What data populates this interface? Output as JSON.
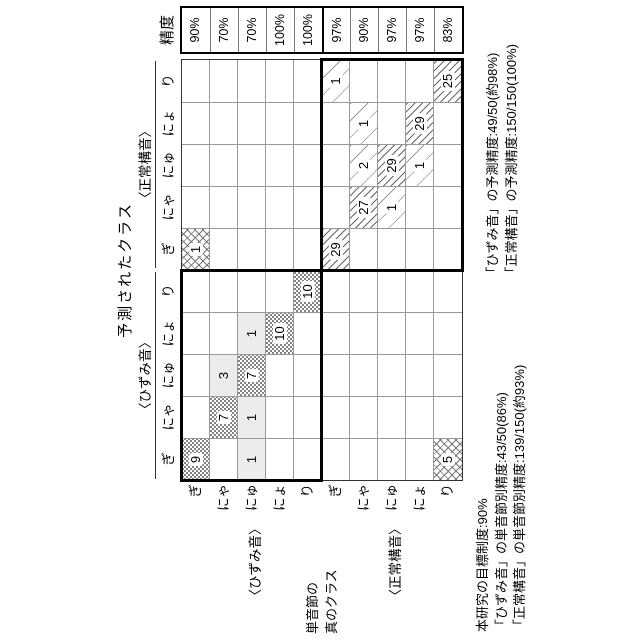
{
  "chart_data": {
    "type": "heatmap",
    "subtype": "confusion-matrix",
    "title": "予測されたクラス",
    "true_axis_label_lines": [
      "単音節の",
      "真のクラス"
    ],
    "accuracy_column_header": "精度",
    "predicted_groups": [
      "〈ひずみ音〉",
      "〈正常構音〉"
    ],
    "true_groups": [
      "〈ひずみ音〉",
      "〈正常構音〉"
    ],
    "classes": [
      "ぎ",
      "にゃ",
      "にゅ",
      "にょ",
      "り"
    ],
    "rows": [
      {
        "group": "ひずみ音",
        "class": "ぎ",
        "values": [
          9,
          0,
          0,
          0,
          0,
          1,
          0,
          0,
          0,
          0
        ],
        "accuracy": "90%"
      },
      {
        "group": "ひずみ音",
        "class": "にゃ",
        "values": [
          0,
          7,
          3,
          0,
          0,
          0,
          0,
          0,
          0,
          0
        ],
        "accuracy": "70%"
      },
      {
        "group": "ひずみ音",
        "class": "にゅ",
        "values": [
          1,
          1,
          7,
          1,
          0,
          0,
          0,
          0,
          0,
          0
        ],
        "accuracy": "70%"
      },
      {
        "group": "ひずみ音",
        "class": "にょ",
        "values": [
          0,
          0,
          0,
          10,
          0,
          0,
          0,
          0,
          0,
          0
        ],
        "accuracy": "100%"
      },
      {
        "group": "ひずみ音",
        "class": "り",
        "values": [
          0,
          0,
          0,
          0,
          10,
          0,
          0,
          0,
          0,
          0
        ],
        "accuracy": "100%"
      },
      {
        "group": "正常構音",
        "class": "ぎ",
        "values": [
          0,
          0,
          0,
          0,
          0,
          29,
          0,
          0,
          0,
          1
        ],
        "accuracy": "97%"
      },
      {
        "group": "正常構音",
        "class": "にゃ",
        "values": [
          0,
          0,
          0,
          0,
          0,
          0,
          27,
          2,
          1,
          0
        ],
        "accuracy": "90%"
      },
      {
        "group": "正常構音",
        "class": "にゅ",
        "values": [
          0,
          0,
          0,
          0,
          0,
          0,
          1,
          29,
          0,
          0
        ],
        "accuracy": "97%"
      },
      {
        "group": "正常構音",
        "class": "にょ",
        "values": [
          0,
          0,
          0,
          0,
          0,
          0,
          0,
          1,
          29,
          0
        ],
        "accuracy": "97%"
      },
      {
        "group": "正常構音",
        "class": "り",
        "values": [
          5,
          0,
          0,
          0,
          0,
          0,
          0,
          0,
          0,
          25
        ],
        "accuracy": "83%"
      }
    ],
    "legend_note": "行=単音節の真のクラス、列=予測されたクラス"
  },
  "annotations": {
    "goal": "本研究の目標制度:90%",
    "distorted_syllable_accuracy": "「ひずみ音」の単音節別精度:43/50(86%)",
    "normal_syllable_accuracy": "「正常構音」の単音節別精度:139/150(約93%)",
    "distorted_prediction_accuracy": "「ひずみ音」の予測精度:49/50(約98%)",
    "normal_prediction_accuracy": "「正常構音」の予測精度:150/150(100%)"
  }
}
